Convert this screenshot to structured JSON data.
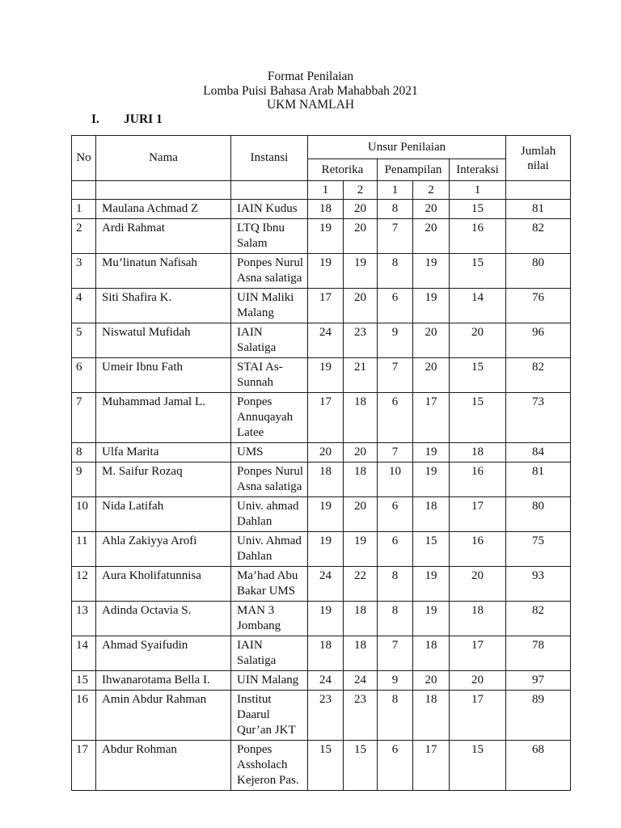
{
  "title": {
    "line1": "Format Penilaian",
    "line2": "Lomba Puisi Bahasa Arab Mahabbah 2021",
    "line3": "UKM NAMLAH"
  },
  "section": {
    "numeral": "I.",
    "label": "JURI 1"
  },
  "table": {
    "headers": {
      "no": "No",
      "nama": "Nama",
      "instansi": "Instansi",
      "unsur": "Unsur Penilaian",
      "retorika": "Retorika",
      "penampilan": "Penampilan",
      "interaksi": "Interaksi",
      "jumlah": "Jumlah nilai",
      "sub": [
        "1",
        "2",
        "1",
        "2",
        "1"
      ]
    },
    "rows": [
      {
        "no": "1",
        "nama": "Maulana Achmad Z",
        "instansi": "IAIN Kudus",
        "r1": "18",
        "r2": "20",
        "p1": "8",
        "p2": "20",
        "i1": "15",
        "jumlah": "81"
      },
      {
        "no": "2",
        "nama": "Ardi Rahmat",
        "instansi": "LTQ Ibnu Salam",
        "r1": "19",
        "r2": "20",
        "p1": "7",
        "p2": "20",
        "i1": "16",
        "jumlah": "82"
      },
      {
        "no": "3",
        "nama": "Mu’linatun Nafisah",
        "instansi": "Ponpes Nurul Asna salatiga",
        "r1": "19",
        "r2": "19",
        "p1": "8",
        "p2": "19",
        "i1": "15",
        "jumlah": "80"
      },
      {
        "no": "4",
        "nama": "Siti Shafira K.",
        "instansi": "UIN Maliki Malang",
        "r1": "17",
        "r2": "20",
        "p1": "6",
        "p2": "19",
        "i1": "14",
        "jumlah": "76"
      },
      {
        "no": "5",
        "nama": "Niswatul Mufidah",
        "instansi": "IAIN Salatiga",
        "r1": "24",
        "r2": "23",
        "p1": "9",
        "p2": "20",
        "i1": "20",
        "jumlah": "96"
      },
      {
        "no": "6",
        "nama": "Umeir Ibnu Fath",
        "instansi": "STAI As-Sunnah",
        "r1": "19",
        "r2": "21",
        "p1": "7",
        "p2": "20",
        "i1": "15",
        "jumlah": "82"
      },
      {
        "no": "7",
        "nama": "Muhammad Jamal L.",
        "instansi": "Ponpes Annuqayah Latee",
        "r1": "17",
        "r2": "18",
        "p1": "6",
        "p2": "17",
        "i1": "15",
        "jumlah": "73"
      },
      {
        "no": "8",
        "nama": "Ulfa Marita",
        "instansi": "UMS",
        "r1": "20",
        "r2": "20",
        "p1": "7",
        "p2": "19",
        "i1": "18",
        "jumlah": "84"
      },
      {
        "no": "9",
        "nama": "M. Saifur Rozaq",
        "instansi": "Ponpes Nurul Asna salatiga",
        "r1": "18",
        "r2": "18",
        "p1": "10",
        "p2": "19",
        "i1": "16",
        "jumlah": "81"
      },
      {
        "no": "10",
        "nama": "Nida Latifah",
        "instansi": "Univ. ahmad Dahlan",
        "r1": "19",
        "r2": "20",
        "p1": "6",
        "p2": "18",
        "i1": "17",
        "jumlah": "80"
      },
      {
        "no": "11",
        "nama": "Ahla Zakiyya Arofi",
        "instansi": "Univ. Ahmad Dahlan",
        "r1": "19",
        "r2": "19",
        "p1": "6",
        "p2": "15",
        "i1": "16",
        "jumlah": "75"
      },
      {
        "no": "12",
        "nama": "Aura Kholifatunnisa",
        "instansi": "Ma’had Abu Bakar UMS",
        "r1": "24",
        "r2": "22",
        "p1": "8",
        "p2": "19",
        "i1": "20",
        "jumlah": "93"
      },
      {
        "no": "13",
        "nama": "Adinda Octavia S.",
        "instansi": "MAN 3 Jombang",
        "r1": "19",
        "r2": "18",
        "p1": "8",
        "p2": "19",
        "i1": "18",
        "jumlah": "82"
      },
      {
        "no": "14",
        "nama": "Ahmad Syaifudin",
        "instansi": "IAIN Salatiga",
        "r1": "18",
        "r2": "18",
        "p1": "7",
        "p2": "18",
        "i1": "17",
        "jumlah": "78"
      },
      {
        "no": "15",
        "nama": "Ihwanarotama Bella I.",
        "instansi": "UIN Malang",
        "r1": "24",
        "r2": "24",
        "p1": "9",
        "p2": "20",
        "i1": "20",
        "jumlah": "97"
      },
      {
        "no": "16",
        "nama": "Amin Abdur Rahman",
        "instansi": "Institut Daarul Qur’an JKT",
        "r1": "23",
        "r2": "23",
        "p1": "8",
        "p2": "18",
        "i1": "17",
        "jumlah": "89"
      },
      {
        "no": "17",
        "nama": "Abdur Rohman",
        "instansi": "Ponpes Assholach Kejeron Pas.",
        "r1": "15",
        "r2": "15",
        "p1": "6",
        "p2": "17",
        "i1": "15",
        "jumlah": "68"
      }
    ]
  }
}
